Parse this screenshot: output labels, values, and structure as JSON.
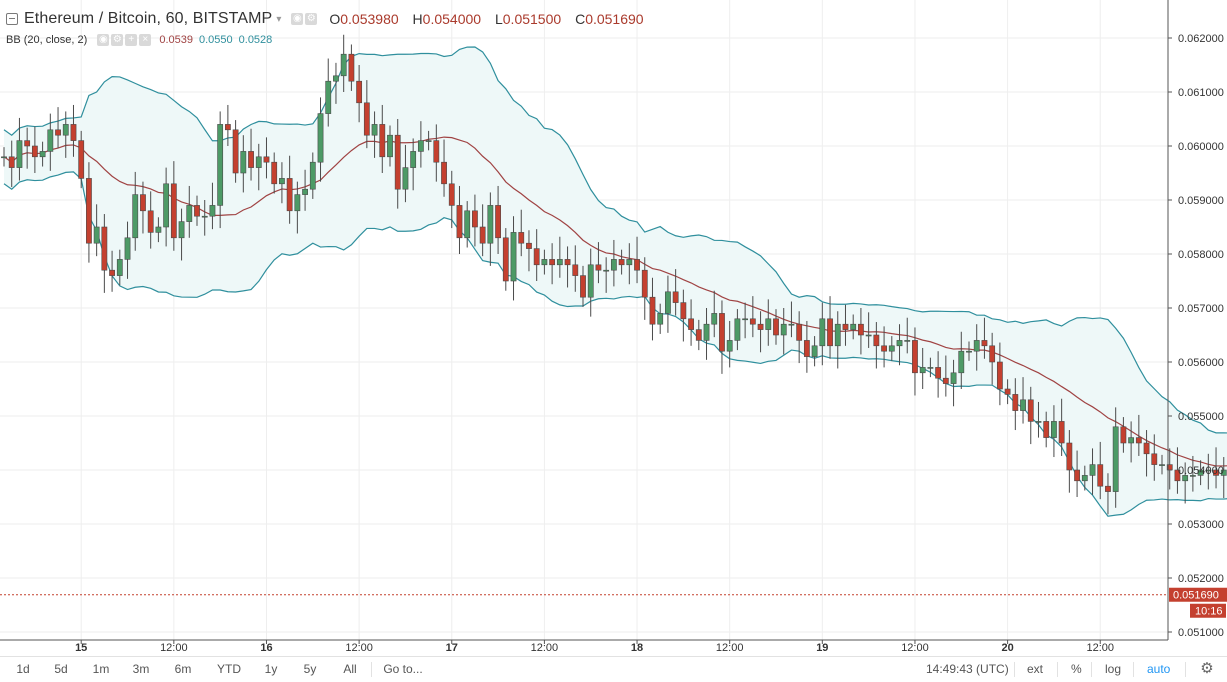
{
  "header": {
    "symbol_title": "Ethereum / Bitcoin, 60, BITSTAMP",
    "ohlc": [
      {
        "key": "O",
        "value": "0.053980"
      },
      {
        "key": "H",
        "value": "0.054000"
      },
      {
        "key": "L",
        "value": "0.051500"
      },
      {
        "key": "C",
        "value": "0.051690"
      }
    ],
    "indicator": {
      "label": "BB (20, close, 2)",
      "basis": "0.0539",
      "upper": "0.0550",
      "lower": "0.0528"
    }
  },
  "colors": {
    "up": "#4d9a66",
    "down": "#c4402f",
    "basis": "#a04343",
    "band": "#2f8f9d",
    "fill": "#eef8f8",
    "grid": "#eeeeee",
    "last_price": "#c4402f"
  },
  "chart_data": {
    "type": "candlestick",
    "title": "Ethereum / Bitcoin, 60, BITSTAMP",
    "x_tick_labels": [
      {
        "label": "15",
        "index": 10
      },
      {
        "label": "12:00",
        "index": 22
      },
      {
        "label": "16",
        "index": 34
      },
      {
        "label": "12:00",
        "index": 46
      },
      {
        "label": "17",
        "index": 58
      },
      {
        "label": "12:00",
        "index": 70
      },
      {
        "label": "18",
        "index": 82
      },
      {
        "label": "12:00",
        "index": 94
      },
      {
        "label": "19",
        "index": 106
      },
      {
        "label": "12:00",
        "index": 118
      },
      {
        "label": "20",
        "index": 130
      },
      {
        "label": "12:00",
        "index": 142
      }
    ],
    "y_ticks": [
      "0.051000",
      "0.052000",
      "0.053000",
      "0.054000",
      "0.055000",
      "0.056000",
      "0.057000",
      "0.058000",
      "0.059000",
      "0.060000",
      "0.061000",
      "0.062000"
    ],
    "y_range": [
      0.05095,
      0.06215
    ],
    "last_price": "0.051690",
    "countdown": "10:16",
    "close": [
      0.0598,
      0.0596,
      0.0601,
      0.06,
      0.0598,
      0.0599,
      0.0603,
      0.0602,
      0.0604,
      0.0601,
      0.0594,
      0.0582,
      0.0585,
      0.0577,
      0.0576,
      0.0579,
      0.0583,
      0.0591,
      0.0588,
      0.0584,
      0.0585,
      0.0593,
      0.0583,
      0.0586,
      0.0589,
      0.0587,
      0.0587,
      0.0589,
      0.0604,
      0.0603,
      0.0595,
      0.0599,
      0.0596,
      0.0598,
      0.0597,
      0.0593,
      0.0594,
      0.0588,
      0.0591,
      0.0592,
      0.0597,
      0.0606,
      0.0612,
      0.0613,
      0.0617,
      0.0612,
      0.0608,
      0.0602,
      0.0604,
      0.0598,
      0.0602,
      0.0592,
      0.0596,
      0.0599,
      0.0601,
      0.0601,
      0.0597,
      0.0593,
      0.0589,
      0.0583,
      0.0588,
      0.0585,
      0.0582,
      0.0589,
      0.0583,
      0.0575,
      0.0584,
      0.0582,
      0.0581,
      0.0578,
      0.0579,
      0.0578,
      0.0579,
      0.0578,
      0.0576,
      0.0572,
      0.0578,
      0.0577,
      0.0577,
      0.0579,
      0.0578,
      0.0579,
      0.0577,
      0.0572,
      0.0567,
      0.0569,
      0.0573,
      0.0571,
      0.0568,
      0.0566,
      0.0564,
      0.0567,
      0.0569,
      0.0562,
      0.0564,
      0.0568,
      0.0568,
      0.0567,
      0.0566,
      0.0568,
      0.0565,
      0.0567,
      0.0567,
      0.0564,
      0.0561,
      0.0563,
      0.0568,
      0.0563,
      0.0567,
      0.0566,
      0.0567,
      0.0565,
      0.0565,
      0.0563,
      0.0562,
      0.0563,
      0.0564,
      0.0564,
      0.0558,
      0.0559,
      0.0559,
      0.0557,
      0.0556,
      0.0558,
      0.0562,
      0.0562,
      0.0564,
      0.0563,
      0.056,
      0.0555,
      0.0554,
      0.0551,
      0.0553,
      0.0549,
      0.0549,
      0.0546,
      0.0549,
      0.0545,
      0.054,
      0.0538,
      0.0539,
      0.0541,
      0.0537,
      0.0536,
      0.0548,
      0.0545,
      0.0546,
      0.0545,
      0.0543,
      0.0541,
      0.0541,
      0.054,
      0.0538,
      0.0539,
      0.0539,
      0.054,
      0.054,
      0.0539,
      0.054,
      0.0539,
      0.054,
      0.054,
      0.0538,
      0.0539,
      0.0539,
      0.0539,
      0.0539,
      0.0538,
      0.0537,
      0.0539,
      0.0539,
      0.05169
    ],
    "ohlc_note": "open = previous close; wicks estimated",
    "bb_upper_shape": "expanding then contracting envelope",
    "grid": true,
    "legend": "top-left",
    "y_axis_side": "right"
  },
  "toolbar": {
    "ranges": [
      "1d",
      "5d",
      "1m",
      "3m",
      "6m",
      "YTD",
      "1y",
      "5y",
      "All"
    ],
    "goto": "Go to...",
    "time": "14:49:43 (UTC)",
    "ext": "ext",
    "pct": "%",
    "log": "log",
    "auto": "auto",
    "settings_icon": "gear-icon"
  }
}
